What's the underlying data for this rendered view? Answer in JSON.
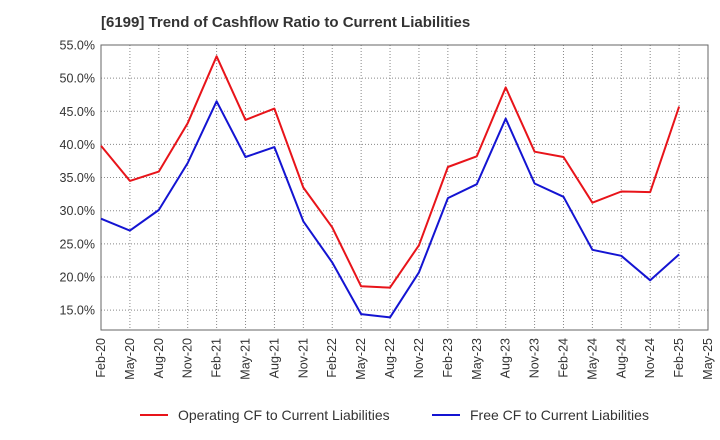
{
  "chart_data": {
    "type": "line",
    "title": "[6199]  Trend of Cashflow Ratio to Current Liabilities",
    "x": [
      "Feb-20",
      "May-20",
      "Aug-20",
      "Nov-20",
      "Feb-21",
      "May-21",
      "Aug-21",
      "Nov-21",
      "Feb-22",
      "May-22",
      "Aug-22",
      "Nov-22",
      "Feb-23",
      "May-23",
      "Aug-23",
      "Nov-23",
      "Feb-24",
      "May-24",
      "Aug-24",
      "Nov-24",
      "Feb-25",
      "May-25"
    ],
    "ylim": [
      12.0,
      55.0
    ],
    "yticks": [
      15.0,
      20.0,
      25.0,
      30.0,
      35.0,
      40.0,
      45.0,
      50.0,
      55.0
    ],
    "ytick_labels": [
      "15.0%",
      "20.0%",
      "25.0%",
      "30.0%",
      "35.0%",
      "40.0%",
      "45.0%",
      "50.0%",
      "55.0%"
    ],
    "grid": true,
    "legend_position": "bottom",
    "series": [
      {
        "name": "Operating CF to Current Liabilities",
        "color": "#e8141a",
        "values": [
          39.8,
          34.5,
          35.9,
          43.2,
          53.3,
          43.7,
          45.4,
          33.5,
          27.5,
          18.6,
          18.4,
          24.8,
          36.6,
          38.2,
          48.6,
          38.9,
          38.1,
          31.2,
          32.9,
          32.8,
          45.7,
          null
        ]
      },
      {
        "name": "Free CF to Current Liabilities",
        "color": "#1414d2",
        "values": [
          28.8,
          27.0,
          30.1,
          37.2,
          46.5,
          38.1,
          39.6,
          28.4,
          22.2,
          14.4,
          13.9,
          20.7,
          31.9,
          34.0,
          43.9,
          34.1,
          32.1,
          24.1,
          23.2,
          19.5,
          23.4,
          null
        ]
      }
    ]
  }
}
